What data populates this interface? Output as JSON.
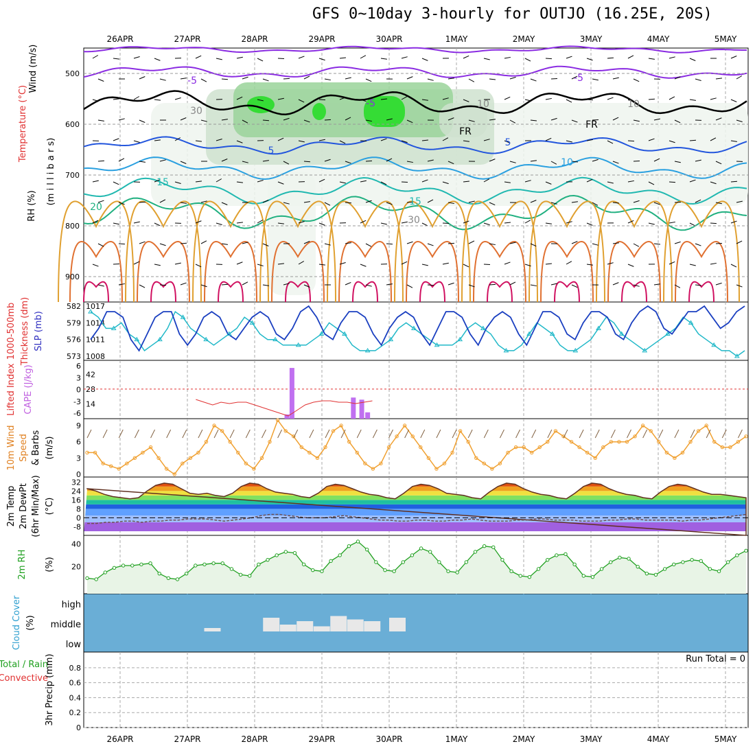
{
  "title": "GFS 0~10day 3-hourly for OUTJO (16.25E, 20S)",
  "dates": [
    "26APR",
    "27APR",
    "28APR",
    "29APR",
    "30APR",
    "1MAY",
    "2MAY",
    "3MAY",
    "4MAY",
    "5MAY"
  ],
  "panel_labels": {
    "upper": [
      {
        "text": "Wind (m/s)",
        "color": "#000000"
      },
      {
        "text": "Temperature (°C)",
        "color": "#e03030"
      },
      {
        "text": "RH (%)",
        "color": "#000000"
      },
      {
        "text": "(m i l l i b a r s)",
        "color": "#000000"
      }
    ],
    "thick": [
      {
        "text": "1000-500mb",
        "color": "#e03030"
      },
      {
        "text": "Thickness (dm)",
        "color": "#e03030"
      },
      {
        "text": "SLP (mb)",
        "color": "#3030c0"
      }
    ],
    "cape": [
      {
        "text": "Lifted Index",
        "color": "#e03030"
      },
      {
        "text": "CAPE (J/kg)",
        "color": "#c060e0"
      }
    ],
    "wind": [
      {
        "text": "10m Wind",
        "color": "#e08020"
      },
      {
        "text": "Speed",
        "color": "#e08020"
      },
      {
        "text": "& Barbs",
        "color": "#000000"
      },
      {
        "text": "(m/s)",
        "color": "#000000"
      }
    ],
    "temp": [
      {
        "text": "2m Temp",
        "color": "#000000"
      },
      {
        "text": "2m DewPt",
        "color": "#000000"
      },
      {
        "text": "(6hr Min/Max)",
        "color": "#000000"
      },
      {
        "text": "(°C)",
        "color": "#000000"
      }
    ],
    "rh": [
      {
        "text": "2m RH",
        "color": "#20a020"
      },
      {
        "text": "(%)",
        "color": "#000000"
      }
    ],
    "cloud": [
      {
        "text": "Cloud Cover",
        "color": "#30a0d0"
      },
      {
        "text": "(%)",
        "color": "#000000"
      }
    ],
    "precip": [
      {
        "text": "Total / Rain",
        "color": "#20a020"
      },
      {
        "text": "Convective",
        "color": "#e03030"
      },
      {
        "text": "3hr Precip (mm)",
        "color": "#000000"
      }
    ]
  },
  "run_total": "Run Total = 0",
  "chart_data": [
    {
      "type": "heatmap",
      "panel": "upper-air",
      "yticks": [
        500,
        600,
        700,
        800,
        900
      ],
      "contour_labels": [
        "-5",
        "-5",
        "-5",
        "5",
        "5",
        "10",
        "15",
        "15",
        "20",
        "FR",
        "FR",
        "30",
        "30",
        "10",
        "10"
      ],
      "note_levels_freezing": "FR"
    },
    {
      "type": "line",
      "panel": "thickness-slp",
      "thickness_ticks": [
        573,
        576,
        579,
        582
      ],
      "slp_ticks": [
        1008,
        1011,
        1014,
        1017
      ],
      "series": [
        {
          "name": "1000-500mb Thickness",
          "values": [
            581,
            580,
            578,
            578,
            579,
            577,
            576,
            574,
            575,
            576,
            578,
            581,
            580,
            578,
            577,
            576,
            575,
            576,
            577,
            578,
            580,
            579,
            577,
            576,
            576,
            575,
            575,
            575,
            575,
            576,
            577,
            579,
            578,
            577,
            575,
            574,
            574,
            574,
            575,
            576,
            578,
            579,
            578,
            577,
            576,
            575,
            575,
            575,
            576,
            578,
            579,
            578,
            577,
            575,
            574,
            574,
            575,
            577,
            579,
            578,
            577,
            575,
            574,
            574,
            575,
            576,
            578,
            580,
            579,
            577,
            576,
            575,
            574,
            575,
            576,
            577,
            578,
            580,
            579,
            577,
            576,
            575,
            574,
            574,
            573,
            574
          ]
        },
        {
          "name": "SLP",
          "values": [
            1011,
            1013,
            1016,
            1016,
            1015,
            1011,
            1009,
            1012,
            1015,
            1016,
            1016,
            1012,
            1010,
            1012,
            1015,
            1016,
            1015,
            1012,
            1011,
            1013,
            1015,
            1016,
            1015,
            1012,
            1011,
            1013,
            1016,
            1017,
            1015,
            1012,
            1011,
            1014,
            1016,
            1016,
            1015,
            1012,
            1010,
            1013,
            1015,
            1016,
            1015,
            1012,
            1010,
            1013,
            1016,
            1016,
            1015,
            1012,
            1010,
            1013,
            1015,
            1016,
            1015,
            1012,
            1010,
            1013,
            1016,
            1016,
            1015,
            1012,
            1011,
            1014,
            1016,
            1016,
            1015,
            1012,
            1011,
            1014,
            1016,
            1017,
            1016,
            1013,
            1012,
            1014,
            1016,
            1016,
            1017,
            1015,
            1013,
            1014,
            1016,
            1017
          ]
        }
      ]
    },
    {
      "type": "bar",
      "panel": "cape-li",
      "cape_ticks": [
        14,
        28,
        42
      ],
      "li_ticks": [
        -6,
        -3,
        0,
        3,
        6
      ],
      "series": [
        {
          "name": "CAPE",
          "points": [
            [
              23.8,
              4
            ],
            [
              24.4,
              48
            ],
            [
              31.7,
              20
            ],
            [
              32.7,
              18
            ],
            [
              33.4,
              6
            ]
          ]
        },
        {
          "name": "Lifted Index",
          "points": [
            [
              13,
              6
            ],
            [
              14,
              5
            ],
            [
              15,
              4
            ],
            [
              16,
              5
            ],
            [
              17,
              4.5
            ],
            [
              18,
              5
            ],
            [
              19,
              5
            ],
            [
              20,
              4
            ],
            [
              21,
              3
            ],
            [
              22,
              2
            ],
            [
              23,
              1
            ],
            [
              24,
              0
            ],
            [
              25,
              2
            ],
            [
              26,
              4
            ],
            [
              27,
              5
            ],
            [
              28,
              5.5
            ],
            [
              29,
              5.5
            ],
            [
              30,
              5
            ],
            [
              31,
              5
            ],
            [
              32,
              4.5
            ],
            [
              33,
              5
            ],
            [
              34,
              5.5
            ]
          ]
        }
      ]
    },
    {
      "type": "line",
      "panel": "wind10m",
      "yticks": [
        0,
        3,
        6,
        9
      ],
      "series": [
        {
          "name": "10m Wind Speed",
          "values": [
            4,
            4,
            2,
            1.5,
            1,
            2,
            3,
            4,
            5,
            3,
            1,
            0,
            2,
            3,
            4,
            6,
            9,
            8,
            6,
            4,
            2,
            1,
            3,
            6,
            10,
            8,
            7,
            5,
            4,
            3,
            5,
            8,
            9,
            6,
            4,
            2,
            1,
            2,
            5,
            7,
            9,
            7,
            5,
            3,
            1,
            2,
            4,
            8,
            6,
            3,
            2,
            1,
            2,
            4,
            5,
            5,
            4,
            5,
            6,
            8,
            7,
            6,
            5,
            4,
            3,
            5,
            6,
            6,
            6,
            7,
            9,
            8,
            6,
            4,
            3,
            4,
            6,
            8,
            9,
            6,
            5,
            5,
            6,
            7
          ]
        }
      ]
    },
    {
      "type": "area",
      "panel": "temp2m",
      "yticks": [
        -8,
        0,
        8,
        16,
        24,
        32
      ],
      "series": [
        {
          "name": "2m Temp",
          "values": [
            26,
            24,
            21,
            19,
            18,
            17,
            18,
            24,
            29,
            31,
            30,
            26,
            22,
            21,
            22,
            20,
            19,
            22,
            28,
            31,
            30,
            26,
            23,
            22,
            21,
            19,
            18,
            22,
            28,
            30,
            29,
            26,
            23,
            21,
            20,
            18,
            17,
            22,
            28,
            30,
            29,
            26,
            22,
            21,
            20,
            18,
            17,
            23,
            28,
            31,
            30,
            26,
            23,
            21,
            20,
            18,
            17,
            22,
            28,
            31,
            30,
            26,
            23,
            21,
            20,
            18,
            17,
            23,
            28,
            30,
            29,
            26,
            23,
            21,
            21,
            20,
            19,
            18
          ]
        },
        {
          "name": "2m DewPt",
          "values": [
            -5,
            -5,
            -4,
            -4,
            -3,
            -3,
            -4,
            -3,
            -3,
            -2,
            -2,
            -1,
            -1,
            -1,
            -2,
            -3,
            -2,
            -1,
            0,
            2,
            3,
            3,
            2,
            1,
            0,
            0,
            0,
            1,
            2,
            1,
            0,
            -1,
            -2,
            -2,
            -3,
            -3,
            -2,
            -2,
            -3,
            -3,
            -2,
            -2,
            -1,
            -2,
            -3,
            -3,
            -3,
            -2,
            -2,
            -1,
            -1,
            -2,
            -2,
            -2,
            -3,
            -3,
            -3,
            -2,
            -2,
            -1,
            -1,
            -2,
            -2,
            -2,
            -2,
            -3,
            -2,
            -2,
            -1,
            0,
            1,
            2,
            3
          ]
        }
      ]
    },
    {
      "type": "area",
      "panel": "rh2m",
      "yticks": [
        20,
        40
      ],
      "series": [
        {
          "name": "2m RH",
          "values": [
            10,
            9,
            15,
            19,
            21,
            21,
            22,
            23,
            14,
            10,
            9,
            14,
            21,
            22,
            23,
            23,
            18,
            13,
            12,
            22,
            26,
            30,
            33,
            32,
            22,
            17,
            16,
            25,
            30,
            38,
            42,
            35,
            24,
            17,
            16,
            24,
            30,
            36,
            33,
            24,
            16,
            15,
            24,
            33,
            38,
            37,
            26,
            16,
            12,
            11,
            18,
            26,
            30,
            31,
            22,
            12,
            11,
            18,
            24,
            28,
            27,
            20,
            14,
            13,
            18,
            22,
            24,
            26,
            25,
            18,
            16,
            24,
            30,
            34
          ]
        }
      ]
    },
    {
      "type": "bar",
      "panel": "cloud",
      "categories": [
        "high",
        "middle",
        "low"
      ],
      "series": [
        {
          "name": "middle cloud",
          "points": [
            [
              14,
              0.2
            ],
            [
              21,
              0.8
            ],
            [
              23,
              0.4
            ],
            [
              25,
              0.6
            ],
            [
              27,
              0.3
            ],
            [
              29,
              0.9
            ],
            [
              31,
              0.7
            ],
            [
              33,
              0.6
            ],
            [
              36,
              0.8
            ]
          ]
        }
      ]
    },
    {
      "type": "bar",
      "panel": "precip",
      "yticks": [
        0,
        0.2,
        0.4,
        0.6,
        0.8
      ],
      "values": []
    }
  ]
}
